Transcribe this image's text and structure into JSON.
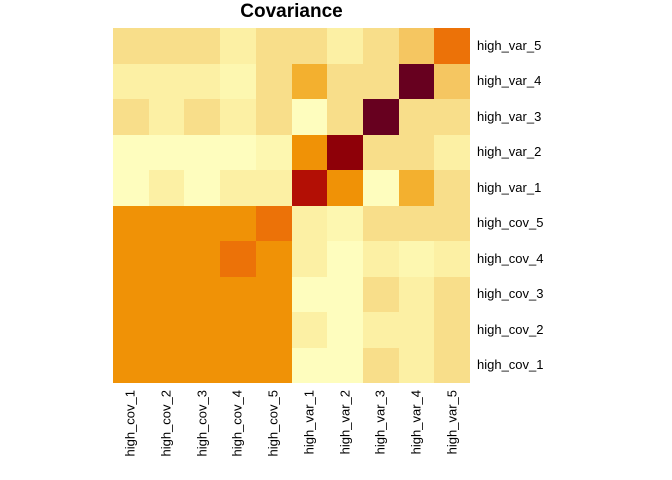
{
  "title": "Covariance",
  "chart_data": {
    "type": "heatmap",
    "title": "Covariance",
    "rows_top_to_bottom": [
      "high_var_5",
      "high_var_4",
      "high_var_3",
      "high_var_2",
      "high_var_1",
      "high_cov_5",
      "high_cov_4",
      "high_cov_3",
      "high_cov_2",
      "high_cov_1"
    ],
    "cols_left_to_right": [
      "high_cov_1",
      "high_cov_2",
      "high_cov_3",
      "high_cov_4",
      "high_cov_5",
      "high_var_1",
      "high_var_2",
      "high_var_3",
      "high_var_4",
      "high_var_5"
    ],
    "colorbar": "none",
    "grid_lines": "off",
    "palette_tokens_low_to_high": [
      "c0",
      "c1",
      "c2",
      "c3",
      "c4",
      "c5",
      "c6",
      "c7",
      "c8",
      "c9",
      "c10"
    ],
    "palette": {
      "c0": "#FEFDBE",
      "c1": "#FDF7B0",
      "c2": "#FCF0A4",
      "c3": "#F8DE8A",
      "c4": "#F5C661",
      "c5": "#F3B02F",
      "c6": "#F09206",
      "c7": "#EC7208",
      "c8": "#B30F05",
      "c9": "#8E0008",
      "c10": "#67001F"
    },
    "cells_tokens": [
      [
        "c3",
        "c3",
        "c3",
        "c2",
        "c3",
        "c3",
        "c2",
        "c3",
        "c4",
        "c7"
      ],
      [
        "c2",
        "c2",
        "c2",
        "c1",
        "c3",
        "c5",
        "c3",
        "c3",
        "c10",
        "c4"
      ],
      [
        "c3",
        "c2",
        "c3",
        "c2",
        "c3",
        "c0",
        "c3",
        "c10",
        "c3",
        "c3"
      ],
      [
        "c0",
        "c0",
        "c0",
        "c0",
        "c1",
        "c6",
        "c9",
        "c3",
        "c3",
        "c2"
      ],
      [
        "c0",
        "c2",
        "c0",
        "c2",
        "c2",
        "c8",
        "c6",
        "c0",
        "c5",
        "c3"
      ],
      [
        "c6",
        "c6",
        "c6",
        "c6",
        "c7",
        "c2",
        "c1",
        "c3",
        "c3",
        "c3"
      ],
      [
        "c6",
        "c6",
        "c6",
        "c7",
        "c6",
        "c2",
        "c0",
        "c2",
        "c1",
        "c2"
      ],
      [
        "c6",
        "c6",
        "c6",
        "c6",
        "c6",
        "c0",
        "c0",
        "c3",
        "c2",
        "c3"
      ],
      [
        "c6",
        "c6",
        "c6",
        "c6",
        "c6",
        "c2",
        "c0",
        "c2",
        "c2",
        "c3"
      ],
      [
        "c6",
        "c6",
        "c6",
        "c6",
        "c6",
        "c0",
        "c0",
        "c3",
        "c2",
        "c3"
      ]
    ],
    "estimated_values_0_1": [
      [
        0.17,
        0.17,
        0.17,
        0.09,
        0.17,
        0.17,
        0.09,
        0.17,
        0.3,
        0.6
      ],
      [
        0.09,
        0.09,
        0.09,
        0.05,
        0.17,
        0.38,
        0.17,
        0.17,
        0.97,
        0.3
      ],
      [
        0.17,
        0.09,
        0.17,
        0.09,
        0.17,
        0.02,
        0.17,
        0.97,
        0.17,
        0.17
      ],
      [
        0.02,
        0.02,
        0.02,
        0.02,
        0.05,
        0.5,
        0.85,
        0.17,
        0.17,
        0.09
      ],
      [
        0.02,
        0.09,
        0.02,
        0.09,
        0.09,
        0.78,
        0.5,
        0.02,
        0.38,
        0.17
      ],
      [
        0.5,
        0.5,
        0.5,
        0.5,
        0.6,
        0.09,
        0.05,
        0.17,
        0.17,
        0.17
      ],
      [
        0.5,
        0.5,
        0.5,
        0.6,
        0.5,
        0.09,
        0.02,
        0.09,
        0.05,
        0.09
      ],
      [
        0.5,
        0.5,
        0.5,
        0.5,
        0.5,
        0.02,
        0.02,
        0.17,
        0.09,
        0.17
      ],
      [
        0.5,
        0.5,
        0.5,
        0.5,
        0.5,
        0.09,
        0.02,
        0.09,
        0.09,
        0.17
      ],
      [
        0.5,
        0.5,
        0.5,
        0.5,
        0.5,
        0.02,
        0.02,
        0.17,
        0.09,
        0.17
      ]
    ]
  }
}
